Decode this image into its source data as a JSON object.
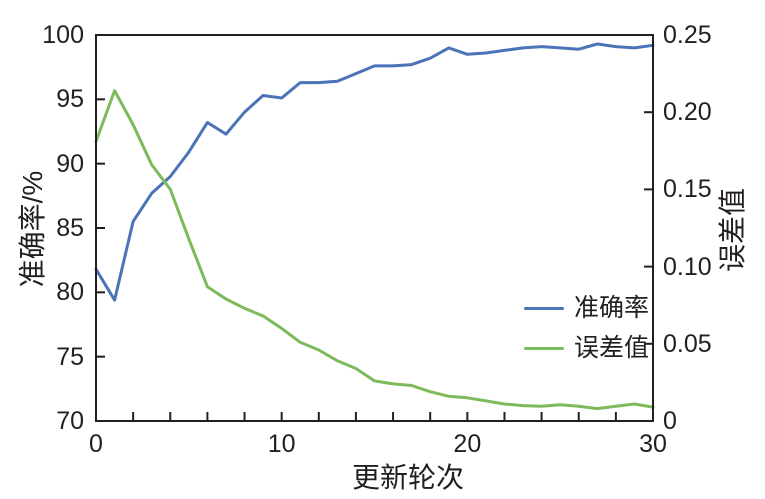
{
  "figure": {
    "background": "#ffffff",
    "axis_color": "#231f20",
    "text_color": "#231f20"
  },
  "chart_data": {
    "type": "line",
    "title": "",
    "x": [
      0,
      1,
      2,
      3,
      4,
      5,
      6,
      7,
      8,
      9,
      10,
      11,
      12,
      13,
      14,
      15,
      16,
      17,
      18,
      19,
      20,
      21,
      22,
      23,
      24,
      25,
      26,
      27,
      28,
      29,
      30
    ],
    "series": [
      {
        "name": "准确率",
        "axis": "left",
        "color": "#4a73b8",
        "values": [
          81.8,
          79.4,
          85.5,
          87.7,
          89.0,
          90.9,
          93.2,
          92.3,
          94.0,
          95.3,
          95.1,
          96.3,
          96.3,
          96.4,
          97.0,
          97.6,
          97.6,
          97.7,
          98.2,
          99.0,
          98.5,
          98.6,
          98.8,
          99.0,
          99.1,
          99.0,
          98.9,
          99.3,
          99.1,
          99.0,
          99.2
        ]
      },
      {
        "name": "误差值",
        "axis": "right",
        "color": "#7cba5a",
        "values": [
          0.181,
          0.214,
          0.192,
          0.166,
          0.15,
          0.118,
          0.087,
          0.079,
          0.073,
          0.068,
          0.06,
          0.051,
          0.046,
          0.039,
          0.034,
          0.026,
          0.024,
          0.023,
          0.019,
          0.016,
          0.015,
          0.013,
          0.011,
          0.01,
          0.0095,
          0.0105,
          0.0095,
          0.008,
          0.0095,
          0.011,
          0.009
        ]
      }
    ],
    "x_axis": {
      "label": "更新轮次",
      "range": [
        0,
        30
      ],
      "minor_tick_interval": 2,
      "labeled_ticks": [
        0,
        10,
        20,
        30
      ],
      "tick_labels": [
        "0",
        "10",
        "20",
        "30"
      ]
    },
    "y_left": {
      "label": "准确率/%",
      "range": [
        70,
        100
      ],
      "ticks": [
        70,
        75,
        80,
        85,
        90,
        95,
        100
      ],
      "tick_labels": [
        "70",
        "75",
        "80",
        "85",
        "90",
        "95",
        "100"
      ]
    },
    "y_right": {
      "label": "误差值",
      "range": [
        0,
        0.25
      ],
      "ticks": [
        0,
        0.05,
        0.1,
        0.15,
        0.2,
        0.25
      ],
      "tick_labels": [
        "0",
        "0.05",
        "0.10",
        "0.15",
        "0.20",
        "0.25"
      ]
    },
    "legend": {
      "position": "right-middle",
      "entries": [
        {
          "label": "准确率",
          "color": "#4a73b8"
        },
        {
          "label": "误差值",
          "color": "#7cba5a"
        }
      ]
    },
    "grid": "off"
  }
}
